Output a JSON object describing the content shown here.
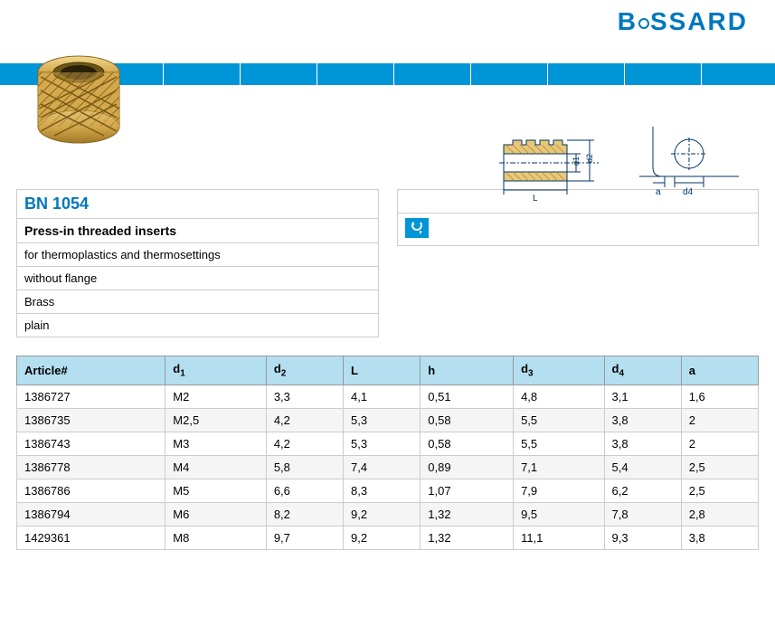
{
  "logo": {
    "text_before": "B",
    "text_after": "SSARD"
  },
  "blue_bar_segments": [
    180,
    265,
    350,
    435,
    520,
    605,
    690,
    775
  ],
  "product_info": {
    "part_number": "BN 1054",
    "title": "Press-in threaded inserts",
    "desc1": "for thermoplastics and thermosettings",
    "desc2": "without flange",
    "material": "Brass",
    "finish": "plain"
  },
  "table": {
    "columns": [
      "Article#",
      "d1",
      "d2",
      "L",
      "h",
      "d3",
      "d4",
      "a"
    ],
    "col_sub": [
      null,
      "1",
      "2",
      null,
      null,
      "3",
      "4",
      null
    ],
    "col_base": [
      "Article#",
      "d",
      "d",
      "L",
      "h",
      "d",
      "d",
      "a"
    ],
    "rows": [
      [
        "1386727",
        "M2",
        "3,3",
        "4,1",
        "0,51",
        "4,8",
        "3,1",
        "1,6"
      ],
      [
        "1386735",
        "M2,5",
        "4,2",
        "5,3",
        "0,58",
        "5,5",
        "3,8",
        "2"
      ],
      [
        "1386743",
        "M3",
        "4,2",
        "5,3",
        "0,58",
        "5,5",
        "3,8",
        "2"
      ],
      [
        "1386778",
        "M4",
        "5,8",
        "7,4",
        "0,89",
        "7,1",
        "5,4",
        "2,5"
      ],
      [
        "1386786",
        "M5",
        "6,6",
        "8,3",
        "1,07",
        "7,9",
        "6,2",
        "2,5"
      ],
      [
        "1386794",
        "M6",
        "8,2",
        "9,2",
        "1,32",
        "9,5",
        "7,8",
        "2,8"
      ],
      [
        "1429361",
        "M8",
        "9,7",
        "9,2",
        "1,32",
        "11,1",
        "9,3",
        "3,8"
      ]
    ]
  },
  "diagram_labels": {
    "d1": "d1",
    "d2": "d2",
    "L": "L",
    "a": "a",
    "d4": "d4"
  },
  "colors": {
    "brand_blue": "#0077be",
    "bar_blue": "#0095d6",
    "header_bg": "#b3dff0",
    "brass_dark": "#c89838",
    "brass_light": "#e8c878",
    "diagram_line": "#003366"
  }
}
